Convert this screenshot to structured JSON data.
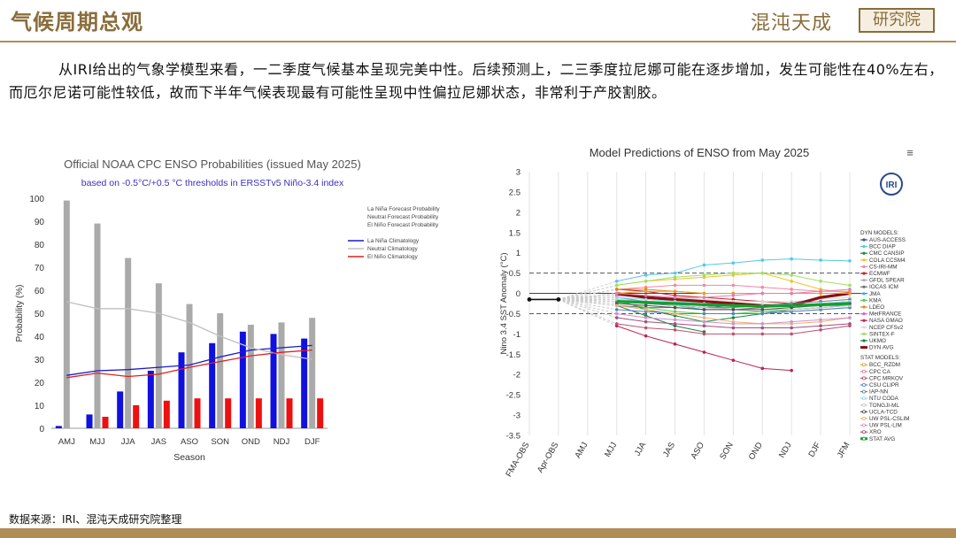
{
  "header": {
    "title": "气候周期总观",
    "brand": "混沌天成",
    "brand_badge": "研究院"
  },
  "body_text": "从IRI给出的气象学模型来看，一二季度气候基本呈现完美中性。后续预测上，二三季度拉尼娜可能在逐步增加，发生可能性在40%左右，而厄尔尼诺可能性较低，故而下半年气候表现最有可能性呈现中性偏拉尼娜状态，非常利于产胶割胶。",
  "source_note": "数据来源：IRI、混沌天成研究院整理",
  "colors": {
    "accent": "#8a6d3b",
    "lanina": "#1010e0",
    "neutral": "#aaaaaa",
    "elnino": "#ee1010"
  },
  "chart_data": [
    {
      "type": "bar",
      "title": "Official NOAA CPC ENSO Probabilities (issued May 2025)",
      "subtitle": "based on -0.5°C/+0.5 °C thresholds in ERSSTv5 Niño-3.4 index",
      "xlabel": "Season",
      "ylabel": "Probability (%)",
      "ylim": [
        0,
        100
      ],
      "yticks": [
        0,
        10,
        20,
        30,
        40,
        50,
        60,
        70,
        80,
        90,
        100
      ],
      "categories": [
        "AMJ",
        "MJJ",
        "JJA",
        "JAS",
        "ASO",
        "SON",
        "OND",
        "NDJ",
        "DJF"
      ],
      "series": [
        {
          "name": "La Niña Forecast Probability",
          "color": "#1010e0",
          "values": [
            1,
            6,
            16,
            25,
            33,
            37,
            42,
            41,
            39
          ]
        },
        {
          "name": "Neutral Forecast Probability",
          "color": "#aaaaaa",
          "values": [
            99,
            89,
            74,
            63,
            54,
            50,
            45,
            46,
            48
          ]
        },
        {
          "name": "El Niño Forecast Probability",
          "color": "#ee1010",
          "values": [
            0,
            5,
            10,
            12,
            13,
            13,
            13,
            13,
            13
          ]
        }
      ],
      "climatology": [
        {
          "name": "La Niña Climatology",
          "color": "#1a1ad0",
          "values": [
            23,
            25,
            25.5,
            26.5,
            27.5,
            31,
            34,
            35,
            36
          ]
        },
        {
          "name": "Neutral Climatology",
          "color": "#c0c0c0",
          "values": [
            55,
            52,
            52,
            50,
            46,
            40,
            35,
            32,
            30
          ]
        },
        {
          "name": "El Niño Climatology",
          "color": "#e02020",
          "values": [
            22,
            24,
            22.5,
            23.5,
            26.5,
            29,
            31.5,
            33,
            34
          ]
        }
      ],
      "legend_labels": [
        "La Niña Forecast Probability",
        "Neutral Forecast Probability",
        "El Niño Forecast Probability",
        "La Niña Climatology",
        "Neutral Climatology",
        "El Niño Climatology"
      ],
      "legend_position": "top-right"
    },
    {
      "type": "line",
      "title": "Model Predictions of ENSO from May 2025",
      "ylabel": "Nino 3.4 SST Anomaly (°C)",
      "ylim": [
        -3.5,
        3
      ],
      "yticks": [
        -3.5,
        -3,
        -2.5,
        -2,
        -1.5,
        -1,
        -0.5,
        0,
        0.5,
        1,
        1.5,
        2,
        2.5,
        3
      ],
      "x": [
        "FMA-OBS",
        "Apr-OBS",
        "AMJ",
        "MJJ",
        "JJA",
        "JAS",
        "ASO",
        "SON",
        "OND",
        "NDJ",
        "DJF",
        "JFM"
      ],
      "thresholds": [
        0.5,
        -0.5
      ],
      "observed": {
        "name": "OBS",
        "values": [
          -0.15,
          -0.15
        ]
      },
      "logo_text": "IRI",
      "dyn_header": "DYN MODELS:",
      "stat_header": "STAT MODELS:",
      "series": [
        {
          "name": "AUS-ACCESS",
          "group": "dyn",
          "color": "#2b5c8a",
          "values": [
            null,
            null,
            null,
            -0.2,
            -0.25,
            -0.3,
            -0.35,
            -0.3,
            -0.3,
            -0.3,
            -0.25,
            -0.2
          ]
        },
        {
          "name": "BCC DIAP",
          "group": "dyn",
          "color": "#55c8e8",
          "values": [
            null,
            null,
            null,
            0.3,
            0.45,
            0.5,
            0.7,
            0.75,
            0.82,
            0.85,
            0.82,
            0.8
          ]
        },
        {
          "name": "CMC CANSIP",
          "group": "dyn",
          "color": "#1a8a3a",
          "values": [
            null,
            null,
            null,
            -0.15,
            -0.4,
            -0.55,
            -0.7,
            -0.6,
            -0.5,
            -0.4,
            -0.35,
            -0.3
          ]
        },
        {
          "name": "COLA CCSM4",
          "group": "dyn",
          "color": "#f0c030",
          "values": [
            null,
            null,
            null,
            0.2,
            0.3,
            0.35,
            0.4,
            0.45,
            0.5,
            0.3,
            0.1,
            0.0
          ]
        },
        {
          "name": "CS-IRI-MM",
          "group": "dyn",
          "color": "#f08aa0",
          "values": [
            null,
            null,
            null,
            0.1,
            0.15,
            0.2,
            0.2,
            0.2,
            0.15,
            0.1,
            0.05,
            0.05
          ]
        },
        {
          "name": "ECMWF",
          "group": "dyn",
          "color": "#c0202a",
          "values": [
            null,
            null,
            null,
            0.1,
            0.05,
            -0.05,
            -0.1,
            -0.15,
            -0.2,
            -0.25,
            -0.1,
            0.0
          ]
        },
        {
          "name": "GFDL SPEAR",
          "group": "dyn",
          "color": "#b0b0b0",
          "values": [
            null,
            null,
            null,
            -0.05,
            -0.1,
            -0.2,
            -0.3,
            -0.4,
            -0.45,
            -0.45,
            -0.4,
            -0.35
          ]
        },
        {
          "name": "IOCAS ICM",
          "group": "dyn",
          "color": "#707070",
          "values": [
            null,
            null,
            null,
            -0.3,
            -0.35,
            -0.35,
            -0.4,
            -0.4,
            -0.35,
            -0.3,
            -0.3,
            -0.3
          ]
        },
        {
          "name": "JMA",
          "group": "dyn",
          "color": "#3ab0d0",
          "values": [
            null,
            null,
            null,
            -0.1,
            -0.2,
            -0.3,
            -0.4,
            null,
            null,
            null,
            null,
            null
          ]
        },
        {
          "name": "KMA",
          "group": "dyn",
          "color": "#50d050",
          "values": [
            null,
            null,
            null,
            -0.2,
            -0.35,
            -0.45,
            -0.5,
            -0.5,
            -0.45,
            -0.4,
            -0.35,
            -0.3
          ]
        },
        {
          "name": "LDEO",
          "group": "dyn",
          "color": "#e08a20",
          "values": [
            null,
            null,
            null,
            0.1,
            0.1,
            0.05,
            0.0,
            0.0,
            0.0,
            0.0,
            0.0,
            0.0
          ]
        },
        {
          "name": "MetFRANCE",
          "group": "dyn",
          "color": "#e060c0",
          "values": [
            null,
            null,
            null,
            -0.05,
            -0.1,
            -0.15,
            -0.2,
            -0.25,
            -0.3,
            null,
            null,
            null
          ]
        },
        {
          "name": "NASA GMAO",
          "group": "dyn",
          "color": "#c02050",
          "values": [
            null,
            null,
            null,
            -0.8,
            -1.05,
            -1.25,
            -1.45,
            -1.65,
            -1.85,
            -1.9,
            null,
            null
          ]
        },
        {
          "name": "NCEP CFSv2",
          "group": "dyn",
          "color": "#d8d8d8",
          "values": [
            null,
            null,
            null,
            0.0,
            -0.05,
            -0.1,
            -0.15,
            -0.2,
            -0.2,
            -0.2,
            -0.15,
            -0.1
          ]
        },
        {
          "name": "SINTEX-F",
          "group": "dyn",
          "color": "#a0e060",
          "values": [
            null,
            null,
            null,
            0.2,
            0.3,
            0.4,
            0.45,
            0.5,
            0.5,
            0.45,
            0.3,
            0.2
          ]
        },
        {
          "name": "UKMO",
          "group": "dyn",
          "color": "#208040",
          "values": [
            null,
            null,
            null,
            -0.3,
            -0.55,
            -0.8,
            -0.95,
            null,
            null,
            null,
            null,
            null
          ]
        },
        {
          "name": "DYN AVG",
          "group": "dyn",
          "color": "#8a1010",
          "values": [
            null,
            null,
            null,
            0.0,
            -0.1,
            -0.15,
            -0.2,
            -0.25,
            -0.3,
            -0.3,
            -0.1,
            0.0
          ]
        },
        {
          "name": "BCC_RZDM",
          "group": "stat",
          "color": "#e8a020",
          "values": [
            null,
            null,
            null,
            0.0,
            0.05,
            0.05,
            0.0,
            0.0,
            0.0,
            0.0,
            0.0,
            0.0
          ]
        },
        {
          "name": "CPC CA",
          "group": "stat",
          "color": "#e87ab0",
          "values": [
            null,
            null,
            null,
            0.0,
            -0.05,
            -0.1,
            -0.1,
            -0.05,
            0.0,
            0.0,
            0.05,
            0.1
          ]
        },
        {
          "name": "CPC MRKOV",
          "group": "stat",
          "color": "#c05070",
          "values": [
            null,
            null,
            null,
            -0.75,
            -0.85,
            -0.9,
            -1.0,
            -1.0,
            -1.0,
            -1.0,
            -0.9,
            -0.8
          ]
        },
        {
          "name": "CSU CLIPR",
          "group": "stat",
          "color": "#5080d0",
          "values": [
            null,
            null,
            null,
            -0.4,
            -0.45,
            -0.5,
            -0.5,
            -0.5,
            -0.5,
            -0.45,
            -0.4,
            -0.35
          ]
        },
        {
          "name": "IAP-NN",
          "group": "stat",
          "color": "#708090",
          "values": [
            null,
            null,
            null,
            -0.2,
            -0.25,
            -0.3,
            -0.35,
            -0.35,
            -0.3,
            -0.25,
            -0.2,
            -0.15
          ]
        },
        {
          "name": "NTU CODA",
          "group": "stat",
          "color": "#90d8e8",
          "values": [
            null,
            null,
            null,
            -0.1,
            -0.15,
            -0.2,
            -0.25,
            -0.3,
            -0.3,
            -0.3,
            -0.25,
            -0.2
          ]
        },
        {
          "name": "TONGJI-ML",
          "group": "stat",
          "color": "#c8c8c8",
          "values": [
            null,
            null,
            null,
            -0.15,
            -0.2,
            -0.3,
            -0.35,
            -0.4,
            -0.4,
            -0.4,
            -0.35,
            -0.3
          ]
        },
        {
          "name": "UCLA-TCD",
          "group": "stat",
          "color": "#505050",
          "values": [
            null,
            null,
            null,
            -0.25,
            -0.3,
            -0.35,
            -0.4,
            -0.4,
            -0.4,
            -0.35,
            -0.3,
            -0.25
          ]
        },
        {
          "name": "UW PSL-CSLIM",
          "group": "stat",
          "color": "#f0b070",
          "values": [
            null,
            null,
            null,
            -0.3,
            -0.4,
            -0.5,
            -0.6,
            -0.7,
            -0.75,
            -0.75,
            -0.7,
            -0.6
          ]
        },
        {
          "name": "UW PSL-LIM",
          "group": "stat",
          "color": "#d090d0",
          "values": [
            null,
            null,
            null,
            -0.5,
            -0.6,
            -0.65,
            -0.7,
            -0.75,
            -0.75,
            -0.7,
            -0.65,
            -0.6
          ]
        },
        {
          "name": "XRO",
          "group": "stat",
          "color": "#a05080",
          "values": [
            null,
            null,
            null,
            -0.6,
            -0.7,
            -0.75,
            -0.8,
            -0.85,
            -0.85,
            -0.85,
            -0.8,
            -0.75
          ]
        },
        {
          "name": "STAT AVG",
          "group": "stat",
          "color": "#10a030",
          "values": [
            null,
            null,
            null,
            -0.2,
            -0.22,
            -0.25,
            -0.28,
            -0.3,
            -0.32,
            -0.3,
            -0.28,
            -0.25
          ]
        }
      ],
      "legend_position": "right"
    }
  ]
}
